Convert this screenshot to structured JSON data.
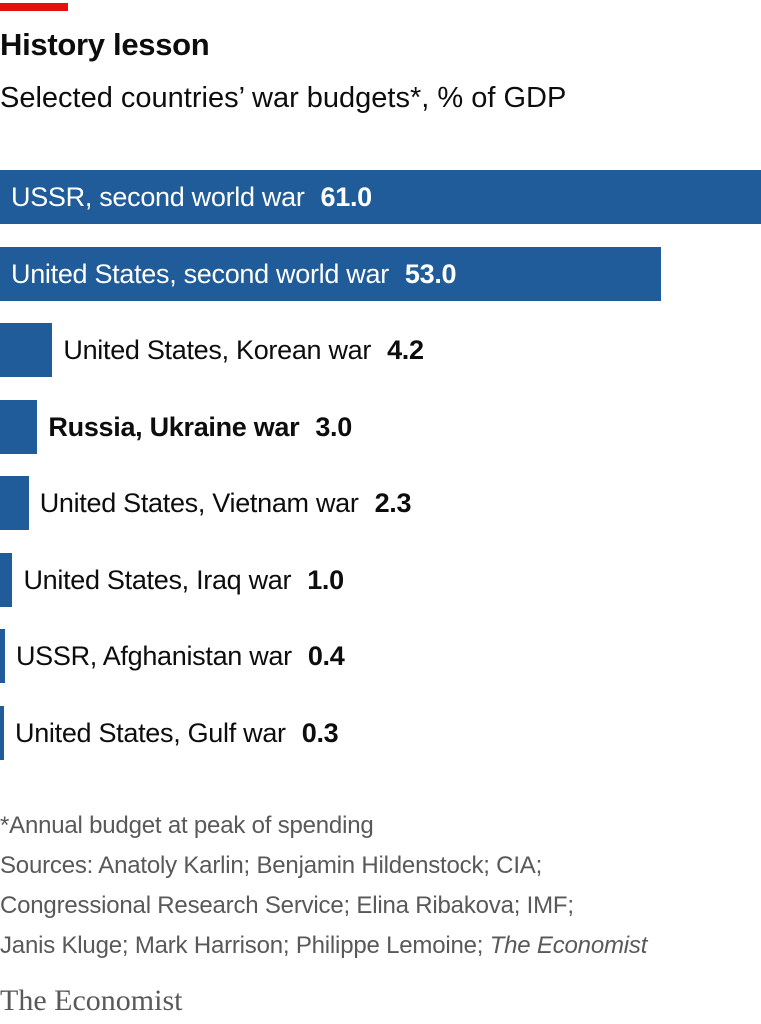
{
  "title": "History lesson",
  "subtitle": "Selected countries’ war budgets*, % of GDP",
  "colors": {
    "accent": "#e3120b",
    "bar": "#1f5c99",
    "text": "#0d0d0d",
    "muted": "#595959"
  },
  "chart_data": {
    "type": "bar",
    "orientation": "horizontal",
    "title": "History lesson",
    "subtitle": "Selected countries’ war budgets*, % of GDP",
    "unit": "% of GDP",
    "xlim": [
      0,
      70
    ],
    "grid": false,
    "categories": [
      "USSR, second world war",
      "United States, second world war",
      "United States, Korean war",
      "Russia, Ukraine war",
      "United States, Vietnam war",
      "United States, Iraq war",
      "USSR, Afghanistan war",
      "United States, Gulf war"
    ],
    "values": [
      61.0,
      53.0,
      4.2,
      3.0,
      2.3,
      1.0,
      0.4,
      0.3
    ],
    "value_labels": [
      "61.0",
      "53.0",
      "4.2",
      "3.0",
      "2.3",
      "1.0",
      "0.4",
      "0.3"
    ],
    "highlighted": [
      "Russia, Ukraine war"
    ]
  },
  "footnotes": {
    "note": "*Annual budget at peak of spending",
    "sources_line1": "Sources: Anatoly Karlin; Benjamin Hildenstock; CIA;",
    "sources_line2": "Congressional Research Service; Elina Ribakova; IMF;",
    "sources_line3_prefix": "Janis Kluge; Mark Harrison; Philippe Lemoine; ",
    "sources_line3_italic": "The Economist"
  },
  "brand": "The Economist"
}
